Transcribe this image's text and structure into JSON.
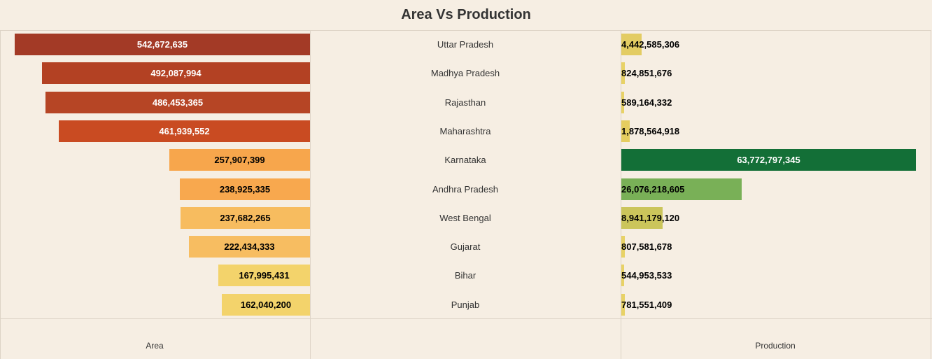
{
  "title": "Area Vs Production",
  "axes": {
    "area_label": "Area",
    "production_label": "Production"
  },
  "chart_data": {
    "type": "bar",
    "title": "Area Vs Production",
    "categories": [
      "Uttar Pradesh",
      "Madhya Pradesh",
      "Rajasthan",
      "Maharashtra",
      "Karnataka",
      "Andhra Pradesh",
      "West Bengal",
      "Gujarat",
      "Bihar",
      "Punjab"
    ],
    "series": [
      {
        "name": "Area",
        "values": [
          542672635,
          492087994,
          486453365,
          461939552,
          257907399,
          238925335,
          237682265,
          222434333,
          167995431,
          162040200
        ],
        "labels": [
          "542,672,635",
          "492,087,994",
          "486,453,365",
          "461,939,552",
          "257,907,399",
          "238,925,335",
          "237,682,265",
          "222,434,333",
          "167,995,431",
          "162,040,200"
        ],
        "colors": [
          "#a33a26",
          "#b34123",
          "#b64525",
          "#c94b22",
          "#f7a64c",
          "#f8a84e",
          "#f7bc5f",
          "#f7bd61",
          "#f3d36b",
          "#f3d36b"
        ],
        "text_colors": [
          "#ffffff",
          "#ffffff",
          "#ffffff",
          "#ffffff",
          "#000000",
          "#000000",
          "#000000",
          "#000000",
          "#000000",
          "#000000"
        ]
      },
      {
        "name": "Production",
        "values": [
          4442585306,
          824851676,
          589164332,
          1878564918,
          63772797345,
          26076218605,
          8941179120,
          807581678,
          544953533,
          781551409
        ],
        "labels": [
          "4,442,585,306",
          "824,851,676",
          "589,164,332",
          "1,878,564,918",
          "63,772,797,345",
          "26,076,218,605",
          "8,941,179,120",
          "807,581,678",
          "544,953,533",
          "781,551,409"
        ],
        "colors": [
          "#e3cc63",
          "#e8d266",
          "#e8d266",
          "#e5cd5f",
          "#136f37",
          "#79b057",
          "#cbc55b",
          "#e8d266",
          "#e8d266",
          "#e8d266"
        ],
        "text_colors": [
          "#000000",
          "#000000",
          "#000000",
          "#000000",
          "#ffffff",
          "#000000",
          "#000000",
          "#000000",
          "#000000",
          "#000000"
        ]
      }
    ],
    "area_max": 542672635,
    "production_max": 63772797345
  }
}
